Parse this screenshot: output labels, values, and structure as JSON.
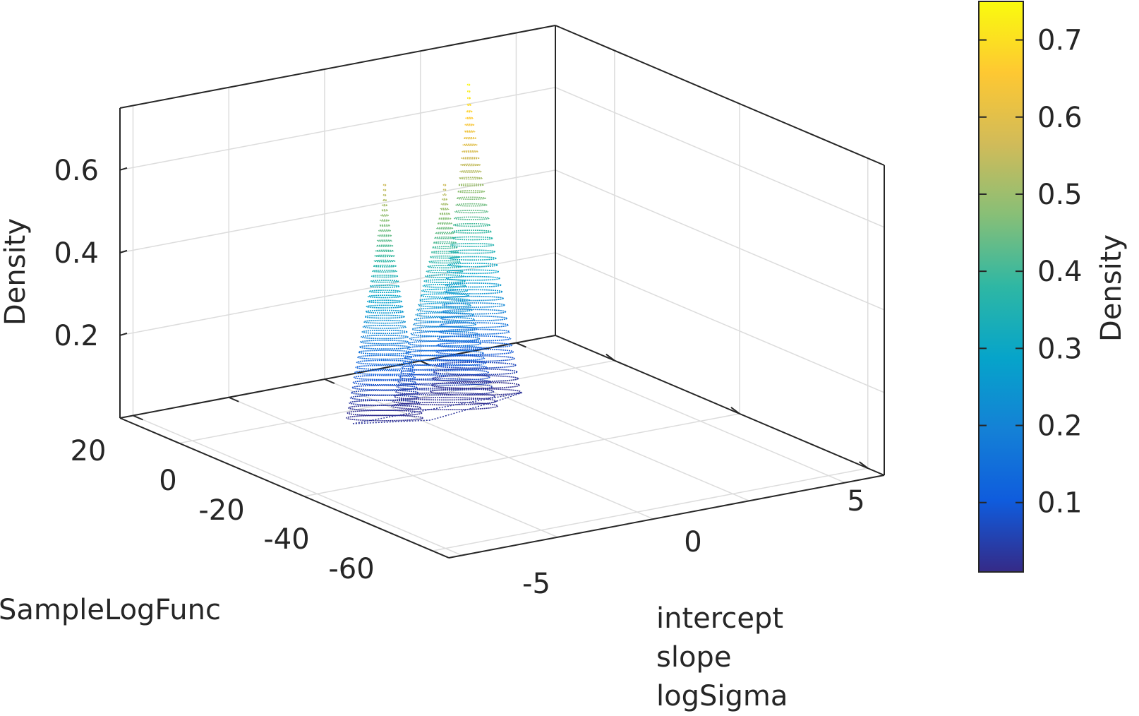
{
  "chart_data": {
    "type": "scatter",
    "subtype": "3d-density-slices",
    "view": "3d",
    "xlabel": "SampleLogFunc",
    "ylabel_lines": [
      "intercept",
      "slope",
      "logSigma"
    ],
    "zlabel": "Density",
    "x_ticks": [
      "20",
      "0",
      "-20",
      "-40",
      "-60"
    ],
    "y_ticks": [
      "-5",
      "0",
      "5"
    ],
    "z_ticks": [
      "0.2",
      "0.4",
      "0.6"
    ],
    "zlim": [
      0,
      0.75
    ],
    "grid": true,
    "colormap": "parula",
    "colorbar": {
      "label": "Density",
      "ticks": [
        "0.1",
        "0.2",
        "0.3",
        "0.4",
        "0.5",
        "0.6",
        "0.7"
      ],
      "range": [
        0.01,
        0.75
      ]
    },
    "series": [
      {
        "peak_density": 0.56
      },
      {
        "peak_density": 0.56
      },
      {
        "peak_density": 0.74
      }
    ]
  },
  "colors": {
    "parula": [
      "#352a87",
      "#0f5cdd",
      "#1481d6",
      "#06a4ca",
      "#2eb7a4",
      "#87bf77",
      "#d1bb59",
      "#fec832",
      "#f9fb0e"
    ],
    "grid": "#dcdcdc",
    "box": "#262626",
    "text": "#262626"
  }
}
